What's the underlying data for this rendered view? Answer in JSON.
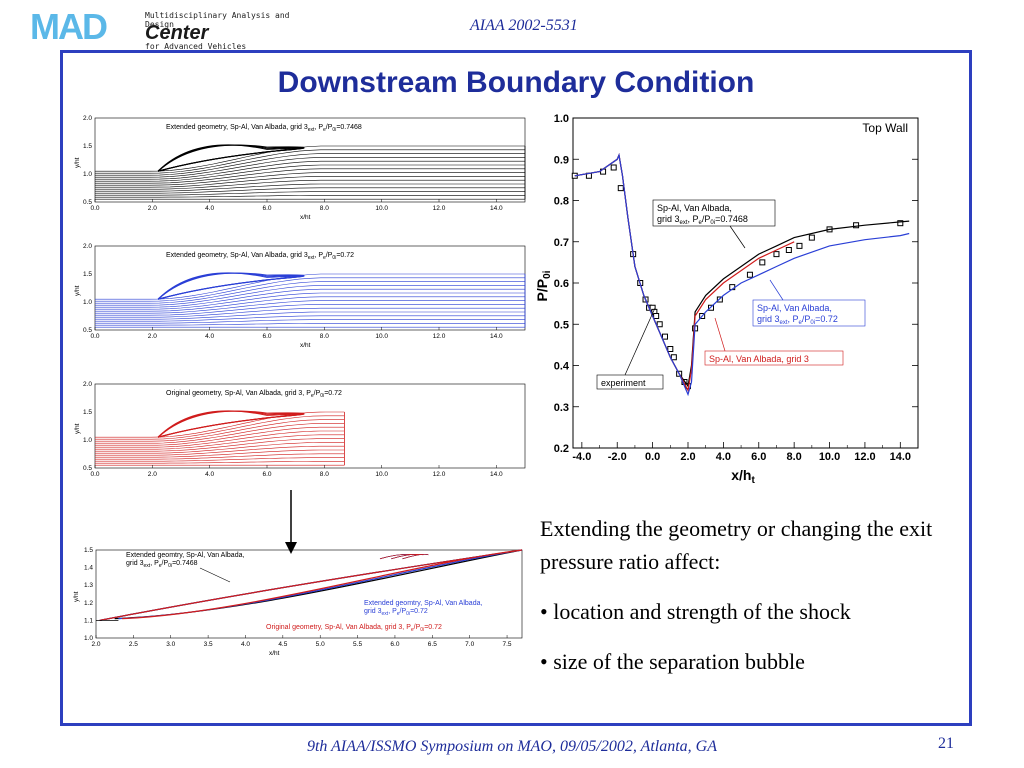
{
  "header": {
    "logo_mad": "MAD",
    "logo_line1": "Multidisciplinary Analysis and Design",
    "logo_center": "Center",
    "logo_line2": "for Advanced Vehicles",
    "paper_id": "AIAA 2002-5531"
  },
  "slide": {
    "title": "Downstream Boundary Condition",
    "bullets": [
      "Extending the geometry or changing the exit pressure ratio affect:",
      "• location and strength of the shock",
      "• size of the separation bubble"
    ]
  },
  "footer": {
    "text": "9th AIAA/ISSMO Symposium on MAO, 09/05/2002, Atlanta, GA",
    "page": "21"
  },
  "colors": {
    "black": "#000000",
    "blue": "#2a3fd6",
    "red": "#d01c1c",
    "accent": "#1e2d9a"
  },
  "chart_data": [
    {
      "type": "line",
      "title": "Extended geometry, Sp-Al, Van Albada, grid 3ext, Pe/P0i=0.7468",
      "xlabel": "x/ht",
      "ylabel": "y/ht",
      "xlim": [
        0,
        15
      ],
      "ylim": [
        0.5,
        2.0
      ],
      "xticks": [
        "0.0",
        "2.0",
        "4.0",
        "6.0",
        "8.0",
        "10.0",
        "12.0",
        "14.0"
      ],
      "yticks": [
        "0.5",
        "1.0",
        "1.5",
        "2.0"
      ],
      "series": [
        {
          "name": "streamlines",
          "color": "#000000",
          "x": [
            0,
            2,
            4,
            6,
            8,
            10,
            12,
            14,
            15
          ]
        }
      ]
    },
    {
      "type": "line",
      "title": "Extended geometry, Sp-Al, Van Albada, grid 3ext, Pe/P0i=0.72",
      "xlabel": "x/ht",
      "ylabel": "y/ht",
      "xlim": [
        0,
        15
      ],
      "ylim": [
        0.5,
        2.0
      ],
      "xticks": [
        "0.0",
        "2.0",
        "4.0",
        "6.0",
        "8.0",
        "10.0",
        "12.0",
        "14.0"
      ],
      "yticks": [
        "0.5",
        "1.0",
        "1.5",
        "2.0"
      ],
      "series": [
        {
          "name": "streamlines",
          "color": "#2a3fd6",
          "x": [
            0,
            2,
            4,
            6,
            8,
            10,
            12,
            14,
            15
          ]
        }
      ]
    },
    {
      "type": "line",
      "title": "Original geometry, Sp-Al, Van Albada, grid 3, Pe/P0i=0.72",
      "xlabel": "x/ht",
      "ylabel": "y/ht",
      "xlim": [
        0,
        15
      ],
      "ylim": [
        0.5,
        2.0
      ],
      "xticks": [
        "0.0",
        "2.0",
        "4.0",
        "6.0",
        "8.0",
        "10.0",
        "12.0",
        "14.0"
      ],
      "yticks": [
        "0.5",
        "1.0",
        "1.5",
        "2.0"
      ],
      "series": [
        {
          "name": "streamlines",
          "color": "#d01c1c",
          "x": [
            0,
            2,
            4,
            6,
            8
          ]
        }
      ]
    },
    {
      "type": "line",
      "title": "",
      "xlabel": "x/ht",
      "ylabel": "y/ht",
      "xlim": [
        2.0,
        7.7
      ],
      "ylim": [
        1.0,
        1.5
      ],
      "xticks": [
        "2.0",
        "2.5",
        "3.0",
        "3.5",
        "4.0",
        "4.5",
        "5.0",
        "5.5",
        "6.0",
        "6.5",
        "7.0",
        "7.5"
      ],
      "yticks": [
        "1.0",
        "1.1",
        "1.2",
        "1.3",
        "1.4",
        "1.5"
      ],
      "annotations": [
        "Extended geomtry, Sp-Al, Van Albada, grid 3ext, Pe/P0i=0.7468",
        "Extended geomtry, Sp-Al, Van Albada, grid 3ext, Pe/P0i=0.72",
        "Original geometry, Sp-Al, Van Albada, grid 3, Pe/P0i=0.72"
      ],
      "series": [
        {
          "name": "black",
          "color": "#000000"
        },
        {
          "name": "blue",
          "color": "#2a3fd6"
        },
        {
          "name": "red",
          "color": "#d01c1c"
        }
      ]
    },
    {
      "type": "line",
      "title": "Top Wall",
      "xlabel": "x/ht",
      "ylabel": "P/P0i",
      "xlim": [
        -4.5,
        15
      ],
      "ylim": [
        0.2,
        1.0
      ],
      "xticks": [
        "-4.0",
        "-2.0",
        "0.0",
        "2.0",
        "4.0",
        "6.0",
        "8.0",
        "10.0",
        "12.0",
        "14.0"
      ],
      "yticks": [
        "0.2",
        "0.3",
        "0.4",
        "0.5",
        "0.6",
        "0.7",
        "0.8",
        "0.9",
        "1.0"
      ],
      "annotations": [
        "Sp-Al, Van Albada, grid 3ext, Pe/P0i=0.7468",
        "Sp-Al, Van Albada, grid 3ext, Pe/P0i=0.72",
        "Sp-Al, Van Albada, grid 3",
        "experiment"
      ],
      "series": [
        {
          "name": "experiment",
          "color": "#000000",
          "marker": "square",
          "x": [
            -4.4,
            -3.6,
            -2.8,
            -2.2,
            -1.8,
            -1.1,
            -0.7,
            -0.4,
            -0.2,
            0.0,
            0.1,
            0.2,
            0.4,
            0.7,
            1.0,
            1.2,
            1.5,
            1.8,
            2.0,
            2.4,
            2.8,
            3.3,
            3.8,
            4.5,
            5.5,
            6.2,
            7.0,
            7.7,
            8.3,
            9.0,
            10.0,
            11.5,
            14.0
          ],
          "y": [
            0.86,
            0.86,
            0.87,
            0.88,
            0.83,
            0.67,
            0.6,
            0.56,
            0.54,
            0.54,
            0.53,
            0.52,
            0.5,
            0.47,
            0.44,
            0.42,
            0.38,
            0.36,
            0.35,
            0.49,
            0.52,
            0.54,
            0.56,
            0.59,
            0.62,
            0.65,
            0.67,
            0.68,
            0.69,
            0.71,
            0.73,
            0.74,
            0.745
          ]
        },
        {
          "name": "grid 3ext Pe/P0i=0.7468",
          "color": "#000000",
          "x": [
            -4.4,
            -3.0,
            -2.0,
            -1.9,
            -1.7,
            -1.4,
            -1.0,
            -0.5,
            0.0,
            0.5,
            1.0,
            1.5,
            2.0,
            2.2,
            2.4,
            3.0,
            4.0,
            5.0,
            6.0,
            7.0,
            8.0,
            10.0,
            12.0,
            14.0,
            14.5
          ],
          "y": [
            0.86,
            0.87,
            0.9,
            0.91,
            0.86,
            0.76,
            0.64,
            0.57,
            0.52,
            0.47,
            0.42,
            0.38,
            0.35,
            0.4,
            0.53,
            0.57,
            0.61,
            0.64,
            0.67,
            0.69,
            0.71,
            0.73,
            0.74,
            0.748,
            0.75
          ]
        },
        {
          "name": "grid 3 (original)",
          "color": "#d01c1c",
          "x": [
            -4.4,
            -3.0,
            -2.0,
            -1.9,
            -1.7,
            -1.4,
            -1.0,
            -0.5,
            0.0,
            0.5,
            1.0,
            1.5,
            2.0,
            2.2,
            2.4,
            3.0,
            4.0,
            5.0,
            6.0,
            7.0,
            8.0
          ],
          "y": [
            0.86,
            0.87,
            0.9,
            0.91,
            0.86,
            0.76,
            0.64,
            0.57,
            0.52,
            0.47,
            0.42,
            0.38,
            0.34,
            0.39,
            0.52,
            0.56,
            0.6,
            0.63,
            0.66,
            0.68,
            0.7
          ]
        },
        {
          "name": "grid 3ext Pe/P0i=0.72",
          "color": "#2a3fd6",
          "x": [
            -4.4,
            -3.0,
            -2.0,
            -1.9,
            -1.7,
            -1.4,
            -1.0,
            -0.5,
            0.0,
            0.5,
            1.0,
            1.5,
            2.0,
            2.2,
            2.4,
            3.0,
            4.0,
            5.0,
            6.0,
            7.0,
            8.0,
            10.0,
            12.0,
            14.0,
            14.5
          ],
          "y": [
            0.86,
            0.87,
            0.9,
            0.91,
            0.86,
            0.76,
            0.64,
            0.57,
            0.52,
            0.47,
            0.42,
            0.38,
            0.33,
            0.36,
            0.5,
            0.53,
            0.57,
            0.6,
            0.62,
            0.64,
            0.66,
            0.69,
            0.705,
            0.715,
            0.72
          ]
        }
      ]
    }
  ]
}
